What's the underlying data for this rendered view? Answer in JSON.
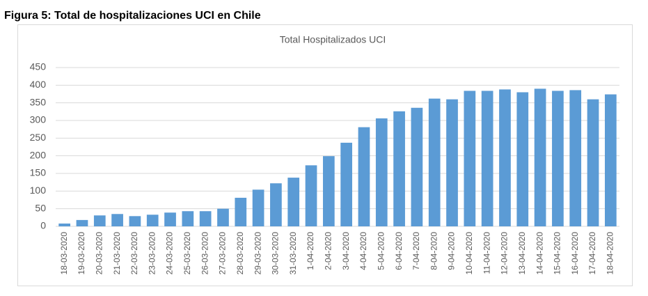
{
  "heading": "Figura 5: Total de hospitalizaciones UCI en Chile",
  "chart_data": {
    "type": "bar",
    "title": "Total Hospitalizados UCI",
    "categories": [
      "18-03-2020",
      "19-03-2020",
      "20-03-2020",
      "21-03-2020",
      "22-03-2020",
      "23-03-2020",
      "24-03-2020",
      "25-03-2020",
      "26-03-2020",
      "27-03-2020",
      "28-03-2020",
      "29-03-2020",
      "30-03-2020",
      "31-03-2020",
      "1-04-2020",
      "2-04-2020",
      "3-04-2020",
      "4-04-2020",
      "5-04-2020",
      "6-04-2020",
      "7-04-2020",
      "8-04-2020",
      "9-04-2020",
      "10-04-2020",
      "11-04-2020",
      "12-04-2020",
      "13-04-2020",
      "14-04-2020",
      "15-04-2020",
      "16-04-2020",
      "17-04-2020",
      "18-04-2020"
    ],
    "values": [
      8,
      18,
      31,
      35,
      29,
      33,
      39,
      43,
      43,
      50,
      81,
      104,
      122,
      138,
      173,
      199,
      237,
      281,
      306,
      326,
      336,
      362,
      360,
      384,
      384,
      388,
      380,
      390,
      384,
      386,
      360,
      374
    ],
    "color": "#5b9bd5",
    "ylim": [
      0,
      450
    ],
    "yticks": [
      0,
      50,
      100,
      150,
      200,
      250,
      300,
      350,
      400,
      450
    ],
    "grid": true
  }
}
